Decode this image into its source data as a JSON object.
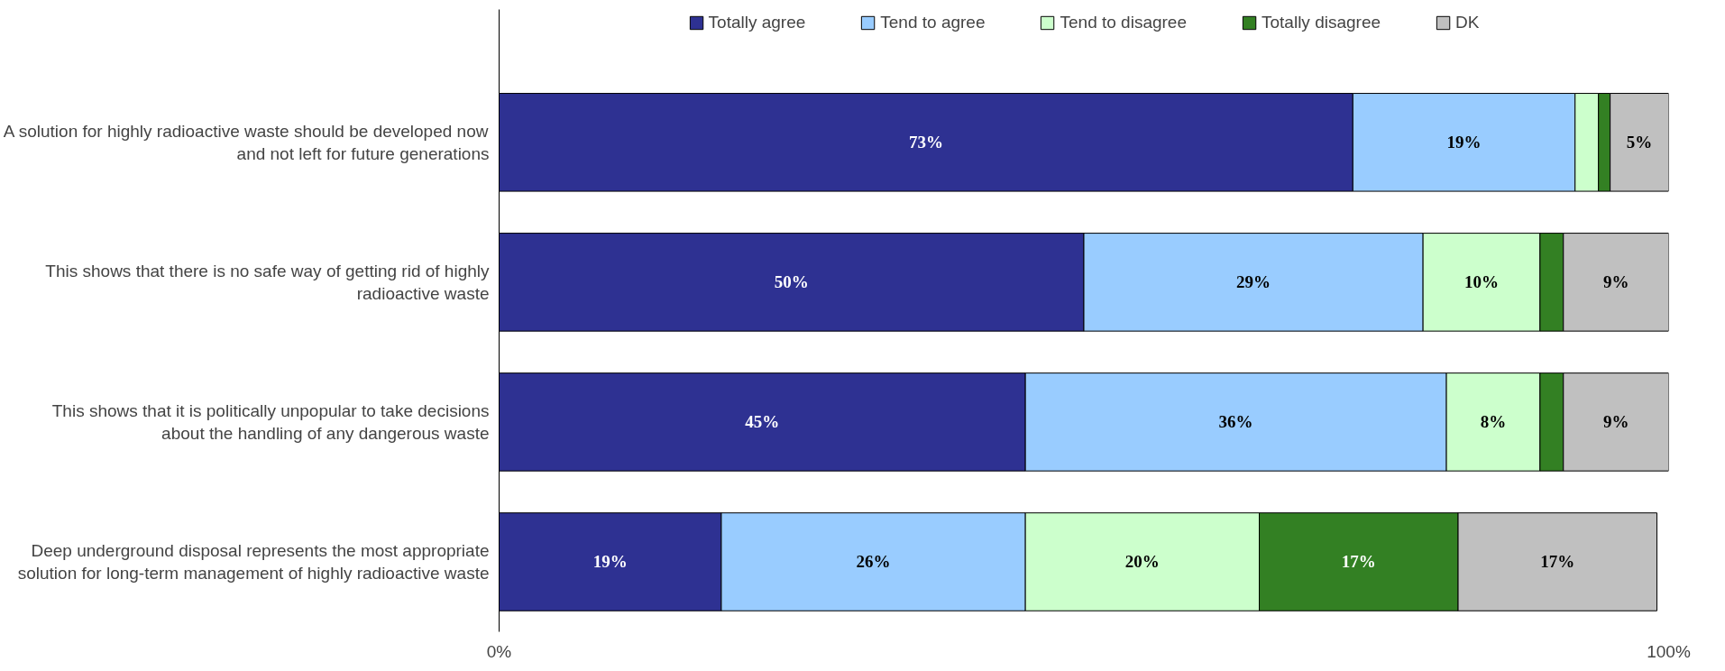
{
  "chart_data": {
    "type": "bar",
    "orientation": "horizontal",
    "stacked": true,
    "categories": [
      "A solution for highly radioactive waste should be developed now and not left for future generations",
      "This shows that there is no safe way of getting rid of highly radioactive waste",
      "This shows that it is politically unpopular to take decisions about the handling of any dangerous waste",
      "Deep underground disposal represents the most appropriate solution for long-term management of highly radioactive waste"
    ],
    "series": [
      {
        "name": "Totally agree",
        "color": "#2e3192",
        "values": [
          73,
          50,
          45,
          19
        ],
        "value_labels": [
          "73%",
          "50%",
          "45%",
          "19%"
        ]
      },
      {
        "name": "Tend to agree",
        "color": "#99ccff",
        "values": [
          19,
          29,
          36,
          26
        ],
        "value_labels": [
          "19%",
          "29%",
          "36%",
          "26%"
        ]
      },
      {
        "name": "Tend to disagree",
        "color": "#ccffcc",
        "values": [
          2,
          10,
          8,
          20
        ],
        "value_labels": [
          null,
          "10%",
          "8%",
          "20%"
        ]
      },
      {
        "name": "Totally disagree",
        "color": "#338023",
        "values": [
          1,
          2,
          2,
          17
        ],
        "value_labels": [
          null,
          null,
          null,
          "17%"
        ]
      },
      {
        "name": "DK",
        "color": "#c0c0c0",
        "values": [
          5,
          9,
          9,
          17
        ],
        "value_labels": [
          "5%",
          "9%",
          "9%",
          "17%"
        ]
      }
    ],
    "xlim": [
      0,
      100
    ],
    "xticks": [
      {
        "value": 0,
        "label": "0%"
      },
      {
        "value": 100,
        "label": "100%"
      }
    ],
    "grid": false,
    "legend": "top"
  }
}
